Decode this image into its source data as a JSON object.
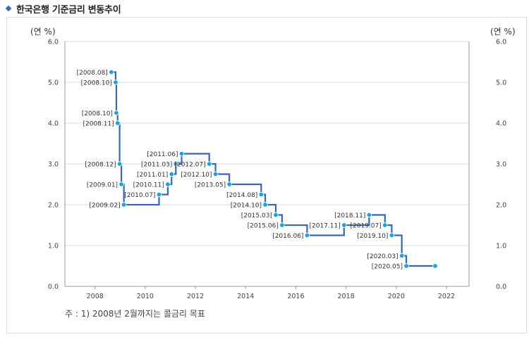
{
  "page_title": "한국은행 기준금리 변동추이",
  "unit_left": "(연 %)",
  "unit_right": "(연 %)",
  "footnote": "주 : 1) 2008년 2월까지는 콜금리 목표",
  "colors": {
    "line": "#3c65b0",
    "marker": "#12a6e6",
    "grid": "#d8d8d8",
    "axis": "#999999"
  },
  "chart_data": {
    "type": "line",
    "title": "한국은행 기준금리 변동추이",
    "xlabel": "",
    "ylabel": "(연 %)",
    "xlim": [
      2006.8,
      2022.9
    ],
    "ylim": [
      0,
      6
    ],
    "x_ticks": [
      "2008",
      "2010",
      "2012",
      "2014",
      "2016",
      "2018",
      "2020",
      "2022"
    ],
    "y_ticks": [
      "0.0",
      "1.0",
      "2.0",
      "3.0",
      "4.0",
      "5.0",
      "6.0"
    ],
    "grid": true,
    "step": true,
    "points": [
      {
        "x": 2008.65,
        "y": 5.25,
        "label": "[2008.08]",
        "side": "left"
      },
      {
        "x": 2008.82,
        "y": 5.0,
        "label": "[2008.10]",
        "side": "left"
      },
      {
        "x": 2008.85,
        "y": 4.25,
        "label": "[2008.10]",
        "side": "left"
      },
      {
        "x": 2008.9,
        "y": 4.0,
        "label": "[2008.11]",
        "side": "left"
      },
      {
        "x": 2008.98,
        "y": 3.0,
        "label": "[2008.12]",
        "side": "left"
      },
      {
        "x": 2009.05,
        "y": 2.5,
        "label": "[2009.01]",
        "side": "left"
      },
      {
        "x": 2009.15,
        "y": 2.0,
        "label": "[2009.02]",
        "side": "left"
      },
      {
        "x": 2010.55,
        "y": 2.25,
        "label": "[2010.07]",
        "side": "left"
      },
      {
        "x": 2010.9,
        "y": 2.5,
        "label": "[2010.11]",
        "side": "left"
      },
      {
        "x": 2011.05,
        "y": 2.75,
        "label": "[2011.01]",
        "side": "left"
      },
      {
        "x": 2011.22,
        "y": 3.0,
        "label": "[2011.03]",
        "side": "left"
      },
      {
        "x": 2011.45,
        "y": 3.25,
        "label": "[2011.06]",
        "side": "left"
      },
      {
        "x": 2012.55,
        "y": 3.0,
        "label": "[2012.07]",
        "side": "left"
      },
      {
        "x": 2012.8,
        "y": 2.75,
        "label": "[2012.10]",
        "side": "left"
      },
      {
        "x": 2013.35,
        "y": 2.5,
        "label": "[2013.05]",
        "side": "left"
      },
      {
        "x": 2014.62,
        "y": 2.25,
        "label": "[2014.08]",
        "side": "left"
      },
      {
        "x": 2014.78,
        "y": 2.0,
        "label": "[2014.10]",
        "side": "left"
      },
      {
        "x": 2015.2,
        "y": 1.75,
        "label": "[2015.03]",
        "side": "left"
      },
      {
        "x": 2015.45,
        "y": 1.5,
        "label": "[2015.06]",
        "side": "left"
      },
      {
        "x": 2016.45,
        "y": 1.25,
        "label": "[2016.06]",
        "side": "left"
      },
      {
        "x": 2017.92,
        "y": 1.5,
        "label": "[2017.11]",
        "side": "left"
      },
      {
        "x": 2018.92,
        "y": 1.75,
        "label": "[2018.11]",
        "side": "left"
      },
      {
        "x": 2019.55,
        "y": 1.5,
        "label": "[2019.07]",
        "side": "left"
      },
      {
        "x": 2019.82,
        "y": 1.25,
        "label": "[2019.10]",
        "side": "left"
      },
      {
        "x": 2020.22,
        "y": 0.75,
        "label": "[2020.03]",
        "side": "left"
      },
      {
        "x": 2020.4,
        "y": 0.5,
        "label": "[2020.05]",
        "side": "left"
      },
      {
        "x": 2021.55,
        "y": 0.5,
        "label": "",
        "side": "none"
      }
    ]
  }
}
